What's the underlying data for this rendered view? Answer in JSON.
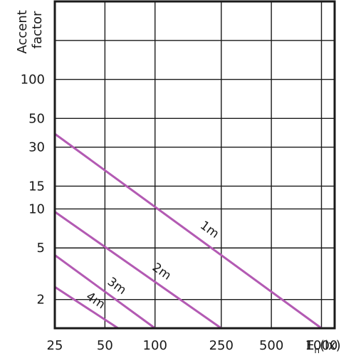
{
  "chart_data": {
    "type": "line",
    "title": "",
    "xlabel": "Eh(lx)",
    "xlabel_main": "E",
    "xlabel_sub": "h",
    "xlabel_unit": "(lx)",
    "ylabel": "Accent factor",
    "ylabel_lines": [
      "Accent",
      "factor"
    ],
    "x_scale": "log",
    "y_scale": "log",
    "x_ticks": [
      25,
      50,
      100,
      250,
      500,
      1000
    ],
    "x_tick_labels": [
      "25",
      "50",
      "100",
      "250",
      "500",
      "1000"
    ],
    "y_ticks": [
      2,
      5,
      10,
      15,
      30,
      50,
      100
    ],
    "y_tick_labels": [
      "2",
      "5",
      "10",
      "15",
      "30",
      "50",
      "100"
    ],
    "xlim": [
      25,
      1200
    ],
    "ylim": [
      1.2,
      400
    ],
    "grid": true,
    "line_color": "#b35ab3",
    "series": [
      {
        "name": "1m",
        "x": [
          25,
          1000
        ],
        "y": [
          38,
          1.2
        ]
      },
      {
        "name": "2m",
        "x": [
          25,
          250
        ],
        "y": [
          9.5,
          1.2
        ]
      },
      {
        "name": "3m",
        "x": [
          25,
          100
        ],
        "y": [
          4.4,
          1.2
        ]
      },
      {
        "name": "4m",
        "x": [
          25,
          60
        ],
        "y": [
          2.5,
          1.2
        ]
      }
    ]
  }
}
